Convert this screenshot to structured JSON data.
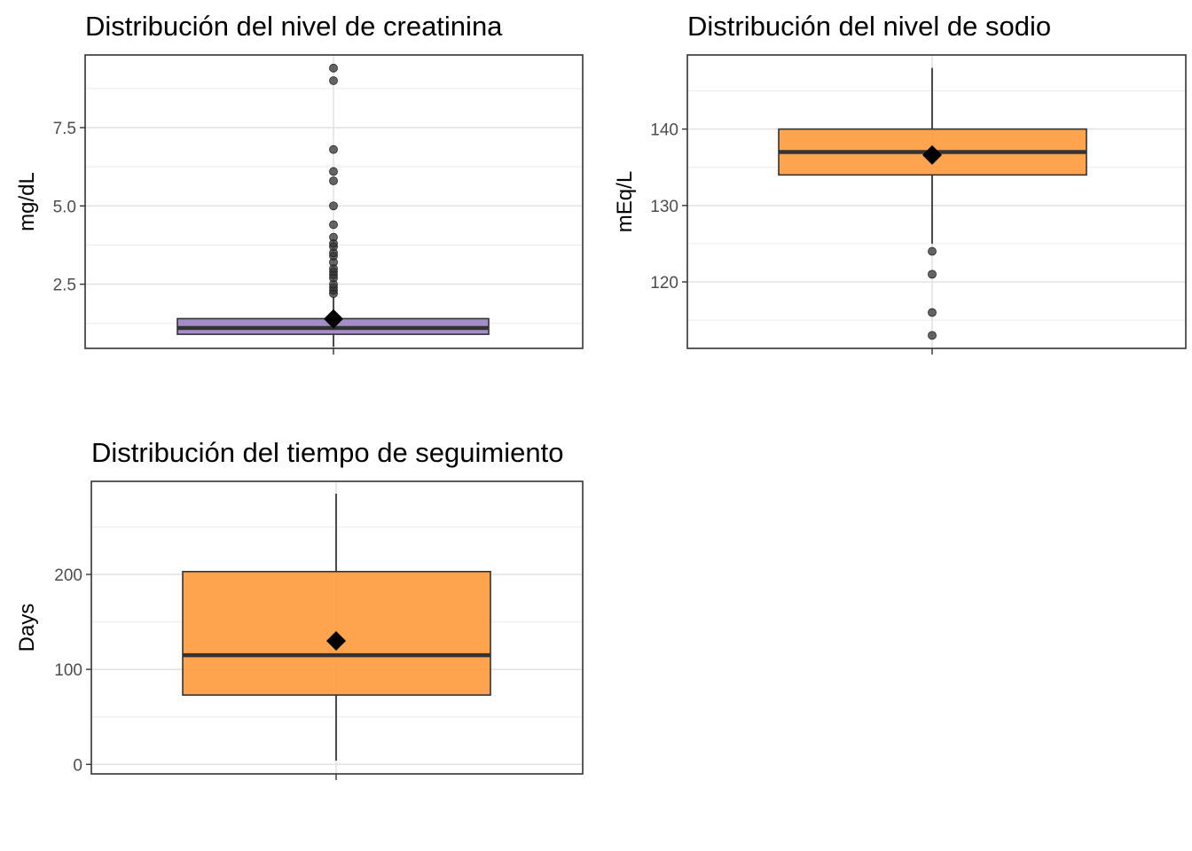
{
  "chart_data": [
    {
      "type": "boxplot",
      "title": "Distribución del nivel de creatinina",
      "ylabel": "mg/dL",
      "xlabel": "",
      "fill_color": "#9b81c5",
      "yticks": [
        "2.5",
        "5.0",
        "7.5"
      ],
      "ytick_values": [
        2.5,
        5.0,
        7.5
      ],
      "ylim": [
        0.45,
        9.82
      ],
      "box": {
        "whisker_low": 0.5,
        "q1": 0.9,
        "median": 1.1,
        "q3": 1.4,
        "whisker_high": 2.1,
        "mean": 1.39
      },
      "outliers": [
        2.2,
        2.3,
        2.4,
        2.5,
        2.7,
        2.8,
        2.9,
        3.0,
        3.2,
        3.4,
        3.5,
        3.7,
        3.8,
        4.0,
        4.4,
        5.0,
        5.8,
        6.1,
        6.8,
        9.0,
        9.4
      ],
      "grid": true
    },
    {
      "type": "boxplot",
      "title": "Distribución del nivel de sodio",
      "ylabel": "mEq/L",
      "xlabel": "",
      "fill_color": "#fe9a3c",
      "yticks": [
        "120",
        "130",
        "140"
      ],
      "ytick_values": [
        120,
        130,
        140
      ],
      "ylim": [
        111.3,
        149.7
      ],
      "box": {
        "whisker_low": 125,
        "q1": 134,
        "median": 137,
        "q3": 140,
        "whisker_high": 148,
        "mean": 136.6
      },
      "outliers": [
        113,
        116,
        121,
        124
      ],
      "grid": true
    },
    {
      "type": "boxplot",
      "title": "Distribución del tiempo de seguimiento",
      "ylabel": "Days",
      "xlabel": "",
      "fill_color": "#fe9a3c",
      "yticks": [
        "0",
        "100",
        "200"
      ],
      "ytick_values": [
        0,
        100,
        200
      ],
      "ylim": [
        -10,
        298
      ],
      "box": {
        "whisker_low": 4,
        "q1": 73,
        "median": 115,
        "q3": 203,
        "whisker_high": 285,
        "mean": 130
      },
      "outliers": [],
      "grid": true
    }
  ]
}
